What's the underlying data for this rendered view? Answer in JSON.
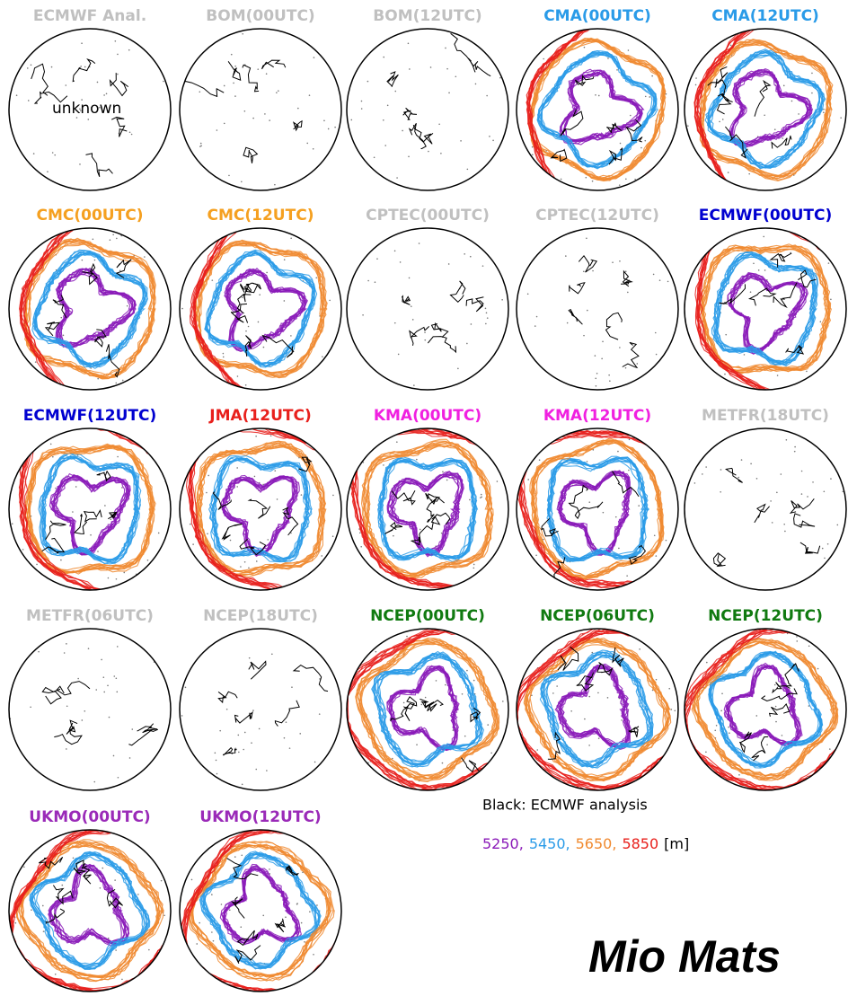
{
  "panels": [
    {
      "title": "ECMWF  Anal.",
      "color": "#c0c0c0",
      "ensemble": false,
      "note": "unknown"
    },
    {
      "title": "BOM(00UTC)",
      "color": "#c0c0c0",
      "ensemble": false
    },
    {
      "title": "BOM(12UTC)",
      "color": "#c0c0c0",
      "ensemble": false
    },
    {
      "title": "CMA(00UTC)",
      "color": "#2a9be8",
      "ensemble": true
    },
    {
      "title": "CMA(12UTC)",
      "color": "#2a9be8",
      "ensemble": true
    },
    {
      "title": "CMC(00UTC)",
      "color": "#f5a020",
      "ensemble": true
    },
    {
      "title": "CMC(12UTC)",
      "color": "#f5a020",
      "ensemble": true
    },
    {
      "title": "CPTEC(00UTC)",
      "color": "#c0c0c0",
      "ensemble": false
    },
    {
      "title": "CPTEC(12UTC)",
      "color": "#c0c0c0",
      "ensemble": false
    },
    {
      "title": "ECMWF(00UTC)",
      "color": "#0000d0",
      "ensemble": true
    },
    {
      "title": "ECMWF(12UTC)",
      "color": "#0000d0",
      "ensemble": true
    },
    {
      "title": "JMA(12UTC)",
      "color": "#e8201c",
      "ensemble": true
    },
    {
      "title": "KMA(00UTC)",
      "color": "#f020e0",
      "ensemble": true
    },
    {
      "title": "KMA(12UTC)",
      "color": "#f020e0",
      "ensemble": true
    },
    {
      "title": "METFR(18UTC)",
      "color": "#c0c0c0",
      "ensemble": false
    },
    {
      "title": "METFR(06UTC)",
      "color": "#c0c0c0",
      "ensemble": false
    },
    {
      "title": "NCEP(18UTC)",
      "color": "#c0c0c0",
      "ensemble": false
    },
    {
      "title": "NCEP(00UTC)",
      "color": "#107a10",
      "ensemble": true
    },
    {
      "title": "NCEP(06UTC)",
      "color": "#107a10",
      "ensemble": true
    },
    {
      "title": "NCEP(12UTC)",
      "color": "#107a10",
      "ensemble": true
    },
    {
      "title": "UKMO(00UTC)",
      "color": "#9a2ab8",
      "ensemble": true
    },
    {
      "title": "UKMO(12UTC)",
      "color": "#9a2ab8",
      "ensemble": true
    }
  ],
  "legend": {
    "caption": "Black:  ECMWF  analysis",
    "levels": [
      {
        "text": "5250,",
        "color": "#8a1ab8"
      },
      {
        "text": "5450,",
        "color": "#2a9be8"
      },
      {
        "text": "5650,",
        "color": "#f08a30"
      },
      {
        "text": "5850",
        "color": "#e8201c"
      }
    ],
    "unit": "[m]"
  },
  "watermark": "Mio Mats"
}
